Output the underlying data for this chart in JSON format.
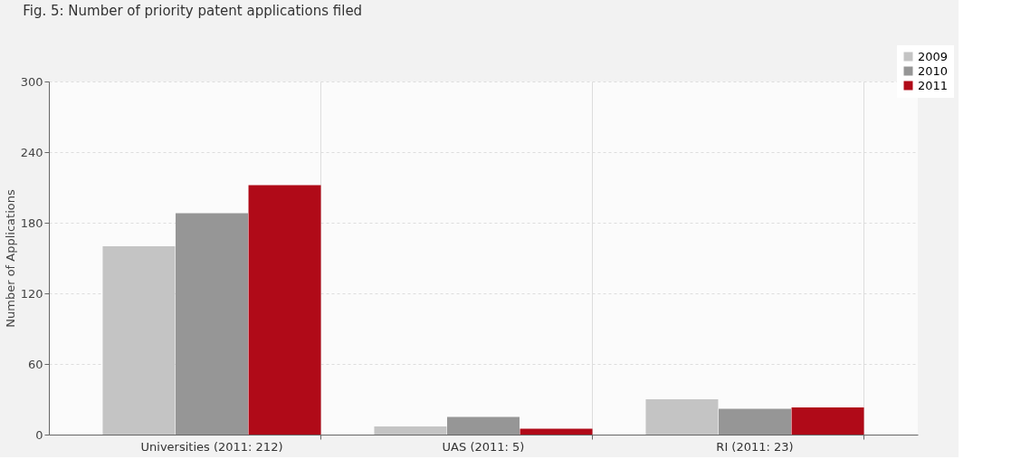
{
  "chart_data": {
    "type": "bar",
    "title": "Fig. 5: Number of priority patent applications filed",
    "ylabel": "Number of Applications",
    "categories": [
      "Universities (2011: 212)",
      "UAS (2011: 5)",
      "RI (2011: 23)"
    ],
    "series": [
      {
        "name": "2009",
        "color": "#c4c4c4",
        "values": [
          160,
          7,
          30
        ]
      },
      {
        "name": "2010",
        "color": "#969696",
        "values": [
          188,
          15,
          22
        ]
      },
      {
        "name": "2011",
        "color": "#b00a18",
        "values": [
          212,
          5,
          23
        ]
      }
    ],
    "ylim": [
      0,
      300
    ],
    "yticks": [
      0,
      60,
      120,
      180,
      240,
      300
    ],
    "grid": true,
    "legend": "top right"
  }
}
